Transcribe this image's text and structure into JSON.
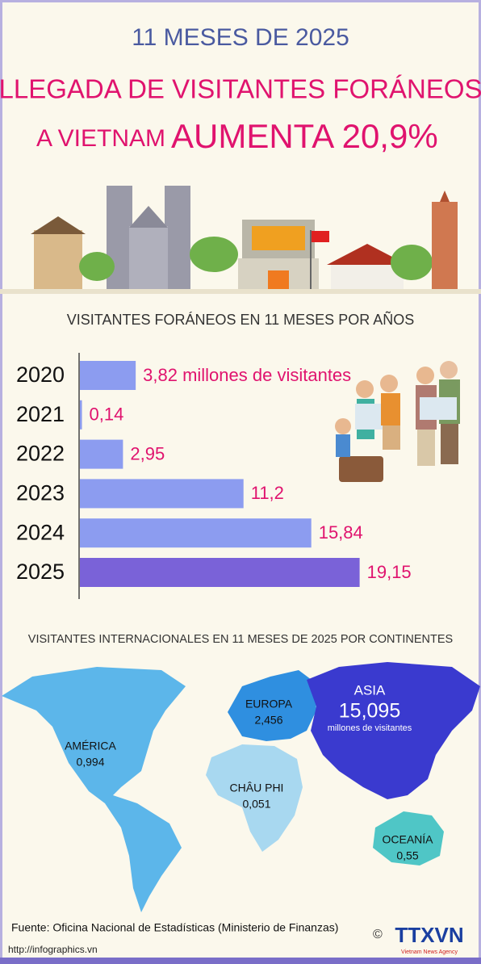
{
  "header": {
    "kicker": "11 MESES DE 2025",
    "title_line1": "LLEGADA DE VISITANTES FORÁNEOS",
    "title_line2_a": "A VIETNAM",
    "title_line2_b": "AUMENTA 20,9%"
  },
  "chart_data": {
    "type": "bar",
    "orientation": "horizontal",
    "title": "VISITANTES FORÁNEOS EN 11 MESES POR AÑOS",
    "categories": [
      "2020",
      "2021",
      "2022",
      "2023",
      "2024",
      "2025"
    ],
    "values": [
      3.82,
      0.14,
      2.95,
      11.2,
      15.84,
      19.15
    ],
    "value_labels": [
      "3,82 millones de visitantes",
      "0,14",
      "2,95",
      "11,2",
      "15,84",
      "19,15"
    ],
    "colors": [
      "#8c9cf0",
      "#8c9cf0",
      "#8c9cf0",
      "#8c9cf0",
      "#8c9cf0",
      "#7a62d8"
    ]
  },
  "map": {
    "title": "VISITANTES INTERNACIONALES EN 11 MESES DE 2025 POR CONTINENTES",
    "regions": [
      {
        "name": "AMÉRICA",
        "value": 0.994,
        "label": "0,994"
      },
      {
        "name": "EUROPA",
        "value": 2.456,
        "label": "2,456"
      },
      {
        "name": "ASIA",
        "value": 15.095,
        "label": "15,095",
        "unit": "millones de visitantes"
      },
      {
        "name": "CHÂU PHI",
        "value": 0.051,
        "label": "0,051"
      },
      {
        "name": "OCEANÍA",
        "value": 0.55,
        "label": "0,55"
      }
    ]
  },
  "footer": {
    "source": "Fuente: Oficina Nacional de Estadísticas (Ministerio de Finanzas)",
    "url": "http://infographics.vn",
    "logo": "TTXVN",
    "logo_sub": "Vietnam News Agency"
  }
}
